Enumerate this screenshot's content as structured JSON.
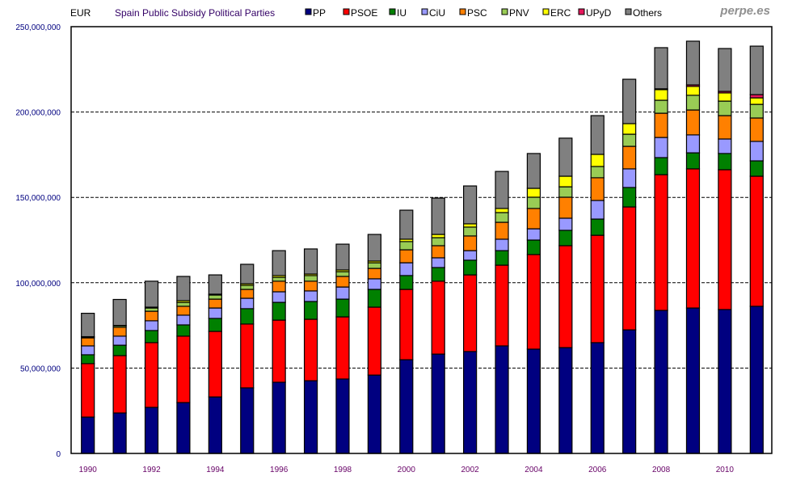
{
  "chart_data": {
    "type": "bar",
    "stacked": true,
    "title": "Spain Public Subsidy Political Parties",
    "unit_label": "EUR",
    "brand": "perpe.es",
    "xlabel": "",
    "ylabel": "EUR",
    "ylim": [
      0,
      250000000
    ],
    "yticks": [
      0,
      50000000,
      100000000,
      150000000,
      200000000,
      250000000
    ],
    "ytick_labels": [
      "0",
      "50,000,000",
      "100,000,000",
      "150,000,000",
      "200,000,000",
      "250,000,000"
    ],
    "grid": "horizontal-dashed",
    "legend_position": "top",
    "categories": [
      "1990",
      "1991",
      "1992",
      "1993",
      "1994",
      "1995",
      "1996",
      "1997",
      "1998",
      "1999",
      "2000",
      "2001",
      "2002",
      "2003",
      "2004",
      "2005",
      "2006",
      "2007",
      "2008",
      "2009",
      "2010",
      "2011"
    ],
    "xtick_labels": [
      "1990",
      "",
      "1992",
      "",
      "1994",
      "",
      "1996",
      "",
      "1998",
      "",
      "2000",
      "",
      "2002",
      "",
      "2004",
      "",
      "2006",
      "",
      "2008",
      "",
      "2010",
      ""
    ],
    "value_unit": "EUR millions",
    "series": [
      {
        "name": "PP",
        "color": "#000080",
        "values": [
          21.3,
          23.7,
          27.0,
          29.8,
          33.1,
          38.4,
          41.7,
          42.6,
          43.6,
          45.9,
          54.9,
          58.2,
          59.7,
          63.0,
          61.1,
          62.0,
          64.9,
          72.4,
          83.8,
          85.2,
          84.3,
          86.2
        ]
      },
      {
        "name": "PSOE",
        "color": "#FF0000",
        "values": [
          31.3,
          33.6,
          37.9,
          38.9,
          38.4,
          37.4,
          36.4,
          36.0,
          36.4,
          39.8,
          41.2,
          42.7,
          44.9,
          47.3,
          55.4,
          59.7,
          62.9,
          72.0,
          79.5,
          81.5,
          81.9,
          76.2
        ]
      },
      {
        "name": "IU",
        "color": "#008000",
        "values": [
          5.2,
          6.1,
          7.1,
          6.6,
          7.6,
          9.0,
          10.4,
          10.4,
          10.4,
          10.4,
          8.1,
          8.0,
          8.6,
          8.5,
          8.5,
          9.0,
          9.5,
          11.4,
          10.0,
          9.4,
          9.5,
          9.0
        ]
      },
      {
        "name": "CiU",
        "color": "#9999FF",
        "values": [
          5.2,
          5.3,
          5.7,
          5.7,
          6.1,
          6.1,
          6.2,
          6.2,
          7.1,
          6.2,
          7.5,
          5.7,
          5.6,
          6.7,
          6.6,
          7.1,
          10.9,
          10.9,
          11.8,
          10.5,
          8.5,
          11.4
        ]
      },
      {
        "name": "PSC",
        "color": "#FF8000",
        "values": [
          4.7,
          5.2,
          5.6,
          5.2,
          5.2,
          5.2,
          6.2,
          5.7,
          6.2,
          6.1,
          7.6,
          7.1,
          8.6,
          9.9,
          11.9,
          12.3,
          13.3,
          13.2,
          14.2,
          14.6,
          13.7,
          13.7
        ]
      },
      {
        "name": "PNV",
        "color": "#99CC55",
        "values": [
          0.5,
          0.9,
          1.9,
          2.3,
          2.4,
          2.4,
          2.3,
          3.3,
          2.8,
          3.3,
          4.8,
          4.7,
          5.2,
          5.7,
          6.6,
          6.1,
          6.6,
          7.1,
          7.6,
          8.6,
          8.5,
          8.0
        ]
      },
      {
        "name": "ERC",
        "color": "#FFFF00",
        "values": [
          0.2,
          0.2,
          0.5,
          1.0,
          0.5,
          0.9,
          1.0,
          0.9,
          1.0,
          1.0,
          1.4,
          1.9,
          1.9,
          2.4,
          5.2,
          6.2,
          7.1,
          6.2,
          6.2,
          5.2,
          4.8,
          3.8
        ]
      },
      {
        "name": "UPyD",
        "color": "#E6175C",
        "values": [
          0,
          0,
          0,
          0,
          0,
          0,
          0,
          0,
          0,
          0,
          0,
          0,
          0,
          0,
          0,
          0,
          0,
          0,
          0.5,
          0.9,
          0.9,
          1.9
        ]
      },
      {
        "name": "Others",
        "color": "#808080",
        "values": [
          13.7,
          15.2,
          15.2,
          14.2,
          11.3,
          11.4,
          14.6,
          14.7,
          15.1,
          15.6,
          17.0,
          21.3,
          22.2,
          21.7,
          20.4,
          22.3,
          22.7,
          26.0,
          24.1,
          25.6,
          25.1,
          28.4
        ]
      }
    ],
    "totals": [
      81.9,
      90.0,
      100.4,
      103.7,
      104.6,
      110.8,
      118.8,
      119.8,
      122.6,
      128.3,
      142.5,
      149.6,
      156.7,
      165.2,
      175.7,
      184.7,
      197.9,
      219.2,
      237.7,
      241.5,
      237.2,
      238.6
    ]
  }
}
